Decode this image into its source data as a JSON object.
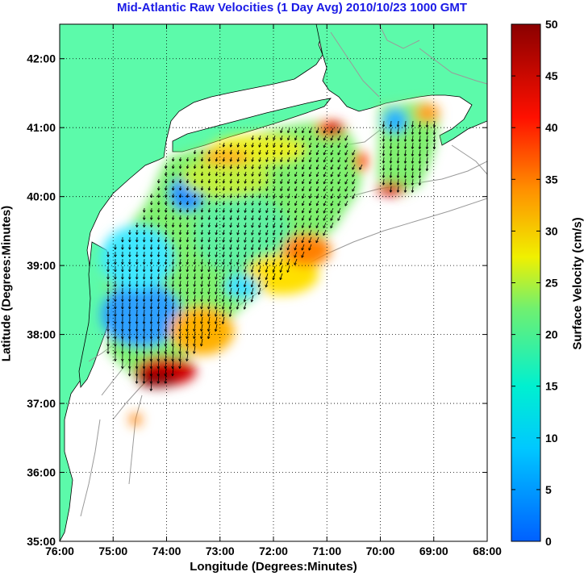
{
  "title": "Mid-Atlantic Raw Velocities (1 Day Avg) 2010/10/23 1000 GMT",
  "xaxis": {
    "label": "Longitude (Degrees:Minutes)",
    "ticks": [
      "76:00",
      "75:00",
      "74:00",
      "73:00",
      "72:00",
      "71:00",
      "70:00",
      "69:00",
      "68:00"
    ]
  },
  "yaxis": {
    "label": "Latitude (Degrees:Minutes)",
    "ticks": [
      "35:00",
      "36:00",
      "37:00",
      "38:00",
      "39:00",
      "40:00",
      "41:00",
      "42:00"
    ]
  },
  "colorbar": {
    "label": "Surface Velocity (cm/s)",
    "ticks": [
      "0",
      "5",
      "10",
      "15",
      "20",
      "25",
      "30",
      "35",
      "40",
      "45",
      "50"
    ],
    "range": [
      0,
      50
    ]
  },
  "map": {
    "lon_range": [
      -76,
      -68
    ],
    "lat_range": [
      35,
      42.5
    ],
    "land_color": "#5cfaaa",
    "coast_color": "#000000",
    "bathymetry_color": "#9a9a9a",
    "arrow_color": "#000000"
  }
}
